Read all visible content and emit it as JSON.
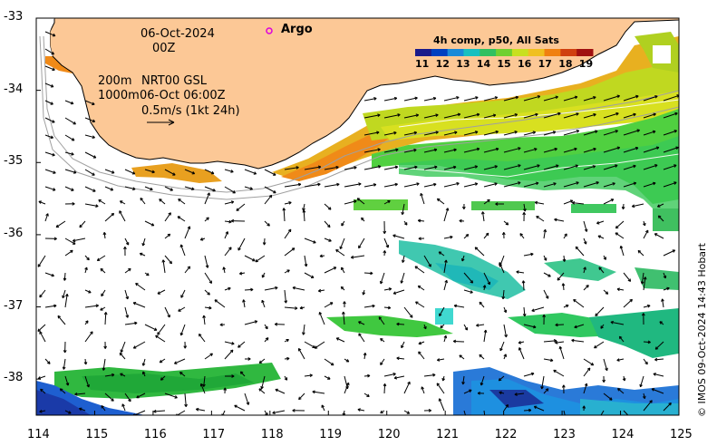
{
  "header": {
    "date": "06-Oct-2024",
    "time": "00Z"
  },
  "legend": {
    "argo_label": "Argo",
    "argo_color": "#dd00dd"
  },
  "annotations": {
    "depth_200": "200m",
    "depth_1000": "1000m",
    "product": "NRT00 GSL",
    "current_time": "06-Oct 06:00Z",
    "speed_scale": "0.5m/s (1kt 24h)"
  },
  "colorbar": {
    "title": "4h comp, p50, All Sats",
    "ticks": [
      "11",
      "12",
      "13",
      "14",
      "15",
      "16",
      "17",
      "18",
      "19"
    ],
    "colors": [
      "#1a1a8a",
      "#0040c0",
      "#1a8ad8",
      "#18c0c0",
      "#30c060",
      "#70d030",
      "#c8e020",
      "#f0c020",
      "#f08010",
      "#d04010",
      "#a01010"
    ]
  },
  "axes": {
    "x_ticks": [
      "114",
      "115",
      "116",
      "117",
      "118",
      "119",
      "120",
      "121",
      "122",
      "123",
      "124",
      "125"
    ],
    "y_ticks": [
      "-33",
      "-34",
      "-35",
      "-36",
      "-37",
      "-38"
    ],
    "x_range": [
      114,
      125
    ],
    "y_range": [
      -38.5,
      -33
    ]
  },
  "colors": {
    "land": "#fcc896",
    "coast": "#000000",
    "isobath": "#a0a0a0"
  },
  "credit": "© IMOS 09-Oct-2024 14:43 Hobart"
}
